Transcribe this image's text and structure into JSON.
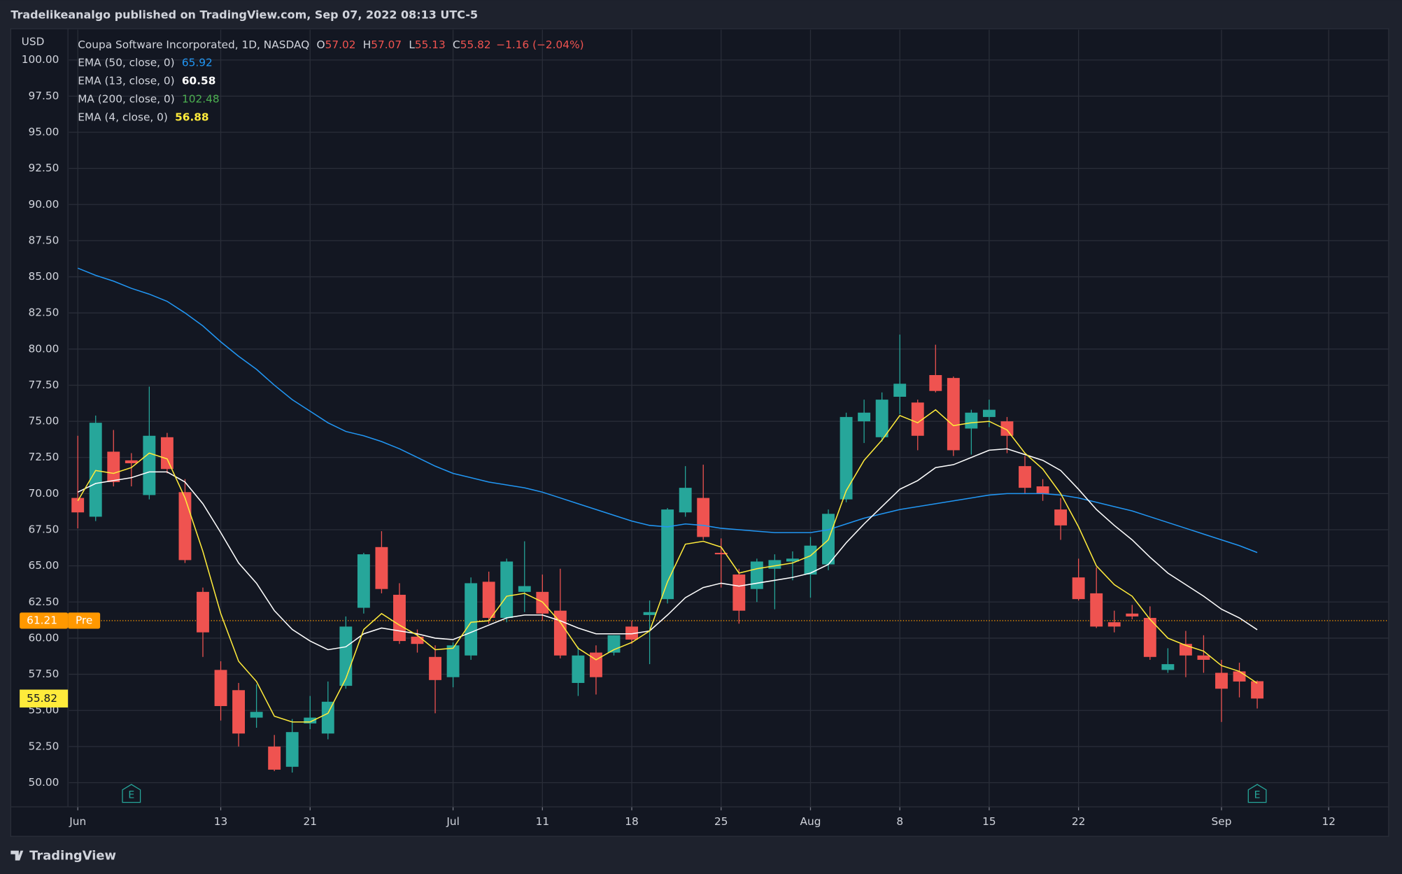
{
  "header": "Tradelikeanalgo published on TradingView.com, Sep 07, 2022 08:13 UTC-5",
  "footer": "TradingView",
  "chart_data": {
    "type": "candlestick",
    "title": "Coupa Software Incorporated, 1D, NASDAQ",
    "currency": "USD",
    "ohlc_labels": [
      "O",
      "H",
      "L",
      "C"
    ],
    "change_label": "−1.16 (−2.04%)",
    "up_color": "#26a69a",
    "down_color": "#ef5350",
    "open": [
      69.7,
      68.4,
      72.9,
      72.3,
      69.9,
      73.9,
      70.1,
      63.2,
      57.8,
      56.4,
      54.5,
      52.5,
      51.1,
      54.1,
      53.4,
      56.7,
      62.1,
      66.3,
      63.0,
      60.1,
      58.7,
      57.3,
      58.8,
      63.9,
      61.4,
      63.2,
      63.2,
      61.9,
      56.9,
      59.0,
      59.0,
      60.8,
      61.6,
      62.7,
      68.7,
      69.7,
      65.9,
      64.4,
      63.4,
      64.8,
      65.3,
      64.4,
      65.1,
      69.6,
      75.0,
      73.9,
      76.7,
      76.3,
      78.2,
      78.0,
      74.5,
      75.3,
      75.0,
      71.9,
      70.5,
      68.9,
      64.2,
      63.1,
      61.1,
      61.7,
      61.4,
      57.8,
      59.6,
      58.8,
      57.6,
      57.7,
      57.02
    ],
    "high": [
      74.0,
      75.4,
      74.4,
      72.8,
      77.4,
      74.2,
      71.0,
      63.5,
      58.4,
      56.9,
      56.8,
      53.3,
      54.4,
      56.0,
      57.0,
      61.5,
      65.9,
      67.4,
      63.8,
      60.6,
      59.5,
      59.7,
      64.2,
      64.6,
      65.5,
      66.7,
      64.4,
      64.8,
      59.4,
      59.5,
      60.2,
      61.2,
      62.6,
      69.0,
      71.9,
      72.0,
      66.9,
      64.8,
      65.5,
      65.8,
      66.0,
      67.0,
      68.9,
      75.6,
      76.5,
      77.0,
      81.0,
      76.5,
      80.3,
      78.1,
      75.8,
      76.5,
      75.3,
      72.6,
      71.0,
      69.7,
      65.5,
      64.9,
      61.9,
      62.3,
      62.2,
      59.3,
      60.5,
      60.2,
      58.5,
      58.3,
      57.07
    ],
    "low": [
      67.6,
      68.1,
      70.5,
      70.5,
      69.6,
      71.4,
      65.2,
      58.7,
      54.3,
      52.5,
      53.8,
      50.8,
      50.7,
      53.7,
      53.0,
      56.5,
      61.7,
      63.1,
      59.6,
      59.0,
      54.8,
      56.6,
      58.5,
      61.0,
      61.1,
      61.8,
      61.2,
      58.6,
      56.0,
      56.1,
      58.8,
      59.6,
      58.2,
      62.4,
      68.4,
      66.8,
      63.5,
      61.0,
      62.5,
      62.0,
      64.0,
      62.8,
      64.7,
      69.4,
      73.5,
      73.6,
      75.5,
      73.0,
      77.0,
      72.6,
      72.7,
      74.6,
      72.8,
      70.0,
      69.5,
      66.8,
      62.6,
      60.7,
      60.4,
      61.3,
      58.5,
      57.6,
      57.3,
      57.6,
      54.2,
      55.9,
      55.13
    ],
    "close": [
      68.7,
      74.9,
      70.8,
      72.1,
      74.0,
      71.7,
      65.4,
      60.4,
      55.3,
      53.4,
      54.9,
      50.9,
      53.5,
      54.5,
      55.6,
      60.8,
      65.8,
      63.4,
      59.8,
      59.6,
      57.1,
      59.5,
      63.8,
      61.4,
      65.3,
      63.6,
      61.7,
      58.8,
      58.8,
      57.3,
      60.2,
      59.9,
      61.8,
      68.9,
      70.4,
      67.0,
      65.8,
      61.9,
      65.3,
      65.4,
      65.5,
      66.4,
      68.6,
      75.3,
      75.6,
      76.5,
      77.6,
      74.0,
      77.1,
      73.0,
      75.6,
      75.8,
      74.0,
      70.4,
      70.0,
      67.8,
      62.7,
      60.8,
      60.8,
      61.5,
      58.7,
      58.2,
      58.8,
      58.5,
      56.5,
      57.0,
      55.82
    ],
    "indicators": [
      {
        "name": "EMA (50, close, 0)",
        "color": "#2196f3",
        "values": [
          85.6,
          85.1,
          84.7,
          84.2,
          83.8,
          83.3,
          82.5,
          81.6,
          80.5,
          79.5,
          78.6,
          77.5,
          76.5,
          75.7,
          74.9,
          74.3,
          74.0,
          73.6,
          73.1,
          72.5,
          71.9,
          71.4,
          71.1,
          70.8,
          70.6,
          70.4,
          70.1,
          69.7,
          69.3,
          68.9,
          68.5,
          68.1,
          67.8,
          67.7,
          67.9,
          67.8,
          67.6,
          67.5,
          67.4,
          67.3,
          67.3,
          67.3,
          67.5,
          67.9,
          68.3,
          68.6,
          68.9,
          69.1,
          69.3,
          69.5,
          69.7,
          69.9,
          70.0,
          70.0,
          70.0,
          69.9,
          69.7,
          69.4,
          69.1,
          68.8,
          68.4,
          68.0,
          67.6,
          67.2,
          66.8,
          66.4,
          65.92
        ]
      },
      {
        "name": "EMA (13, close, 0)",
        "color": "#ffffff",
        "values": [
          70.1,
          70.7,
          70.9,
          71.1,
          71.5,
          71.5,
          70.8,
          69.3,
          67.3,
          65.2,
          63.8,
          61.9,
          60.6,
          59.8,
          59.2,
          59.4,
          60.3,
          60.7,
          60.5,
          60.3,
          60.0,
          59.9,
          60.4,
          60.9,
          61.4,
          61.6,
          61.6,
          61.2,
          60.7,
          60.3,
          60.3,
          60.3,
          60.5,
          61.6,
          62.8,
          63.5,
          63.8,
          63.6,
          63.8,
          64.0,
          64.2,
          64.5,
          65.1,
          66.6,
          67.9,
          69.1,
          70.3,
          70.9,
          71.8,
          72.0,
          72.5,
          73.0,
          73.1,
          72.7,
          72.3,
          71.6,
          70.3,
          68.9,
          67.8,
          66.8,
          65.6,
          64.5,
          63.7,
          62.9,
          62.0,
          61.4,
          60.58
        ]
      },
      {
        "name": "MA (200, close, 0)",
        "color": "#4caf50",
        "last": 102.48
      },
      {
        "name": "EMA (4, close, 0)",
        "color": "#ffeb3b",
        "values": [
          69.5,
          71.6,
          71.4,
          71.8,
          72.8,
          72.4,
          69.7,
          66.0,
          61.7,
          58.4,
          57.0,
          54.6,
          54.2,
          54.2,
          54.8,
          57.2,
          60.6,
          61.7,
          60.9,
          60.2,
          59.2,
          59.3,
          61.1,
          61.2,
          62.9,
          63.1,
          62.5,
          61.1,
          59.3,
          58.5,
          59.2,
          59.7,
          60.5,
          63.9,
          66.5,
          66.7,
          66.3,
          64.5,
          64.8,
          65.0,
          65.2,
          65.7,
          66.8,
          70.2,
          72.3,
          73.7,
          75.4,
          74.9,
          75.8,
          74.7,
          74.9,
          75.0,
          74.4,
          72.8,
          71.7,
          70.0,
          67.7,
          65.0,
          63.7,
          62.9,
          61.3,
          60.0,
          59.5,
          59.1,
          58.1,
          57.7,
          56.88
        ]
      }
    ],
    "premarket": {
      "value": 61.21,
      "label": "Pre",
      "color": "#ff9800"
    },
    "last_price_color": "#ffeb3b",
    "earnings": {
      "label": "E",
      "at": [
        3,
        66
      ]
    },
    "xlim": [
      -0.5,
      73.35
    ],
    "xticks": [
      {
        "value": 0,
        "label": "Jun"
      },
      {
        "value": 8,
        "label": "13"
      },
      {
        "value": 13,
        "label": "21"
      },
      {
        "value": 21,
        "label": "Jul"
      },
      {
        "value": 26,
        "label": "11"
      },
      {
        "value": 31,
        "label": "18"
      },
      {
        "value": 36,
        "label": "25"
      },
      {
        "value": 41,
        "label": "Aug"
      },
      {
        "value": 46,
        "label": "8"
      },
      {
        "value": 51,
        "label": "15"
      },
      {
        "value": 56,
        "label": "22"
      },
      {
        "value": 64,
        "label": "Sep"
      },
      {
        "value": 70,
        "label": "12"
      }
    ],
    "ylim": [
      48.33,
      102.1
    ],
    "yticks": [
      {
        "value": 50,
        "label": "50.00"
      },
      {
        "value": 52.5,
        "label": "52.50"
      },
      {
        "value": 55,
        "label": "55.00"
      },
      {
        "value": 57.5,
        "label": "57.50"
      },
      {
        "value": 60,
        "label": "60.00"
      },
      {
        "value": 62.5,
        "label": "62.50"
      },
      {
        "value": 65,
        "label": "65.00"
      },
      {
        "value": 67.5,
        "label": "67.50"
      },
      {
        "value": 70,
        "label": "70.00"
      },
      {
        "value": 72.5,
        "label": "72.50"
      },
      {
        "value": 75,
        "label": "75.00"
      },
      {
        "value": 77.5,
        "label": "77.50"
      },
      {
        "value": 80,
        "label": "80.00"
      },
      {
        "value": 82.5,
        "label": "82.50"
      },
      {
        "value": 85,
        "label": "85.00"
      },
      {
        "value": 87.5,
        "label": "87.50"
      },
      {
        "value": 90,
        "label": "90.00"
      },
      {
        "value": 92.5,
        "label": "92.50"
      },
      {
        "value": 95,
        "label": "95.00"
      },
      {
        "value": 97.5,
        "label": "97.50"
      },
      {
        "value": 100,
        "label": "100.00"
      }
    ],
    "grid": true
  }
}
